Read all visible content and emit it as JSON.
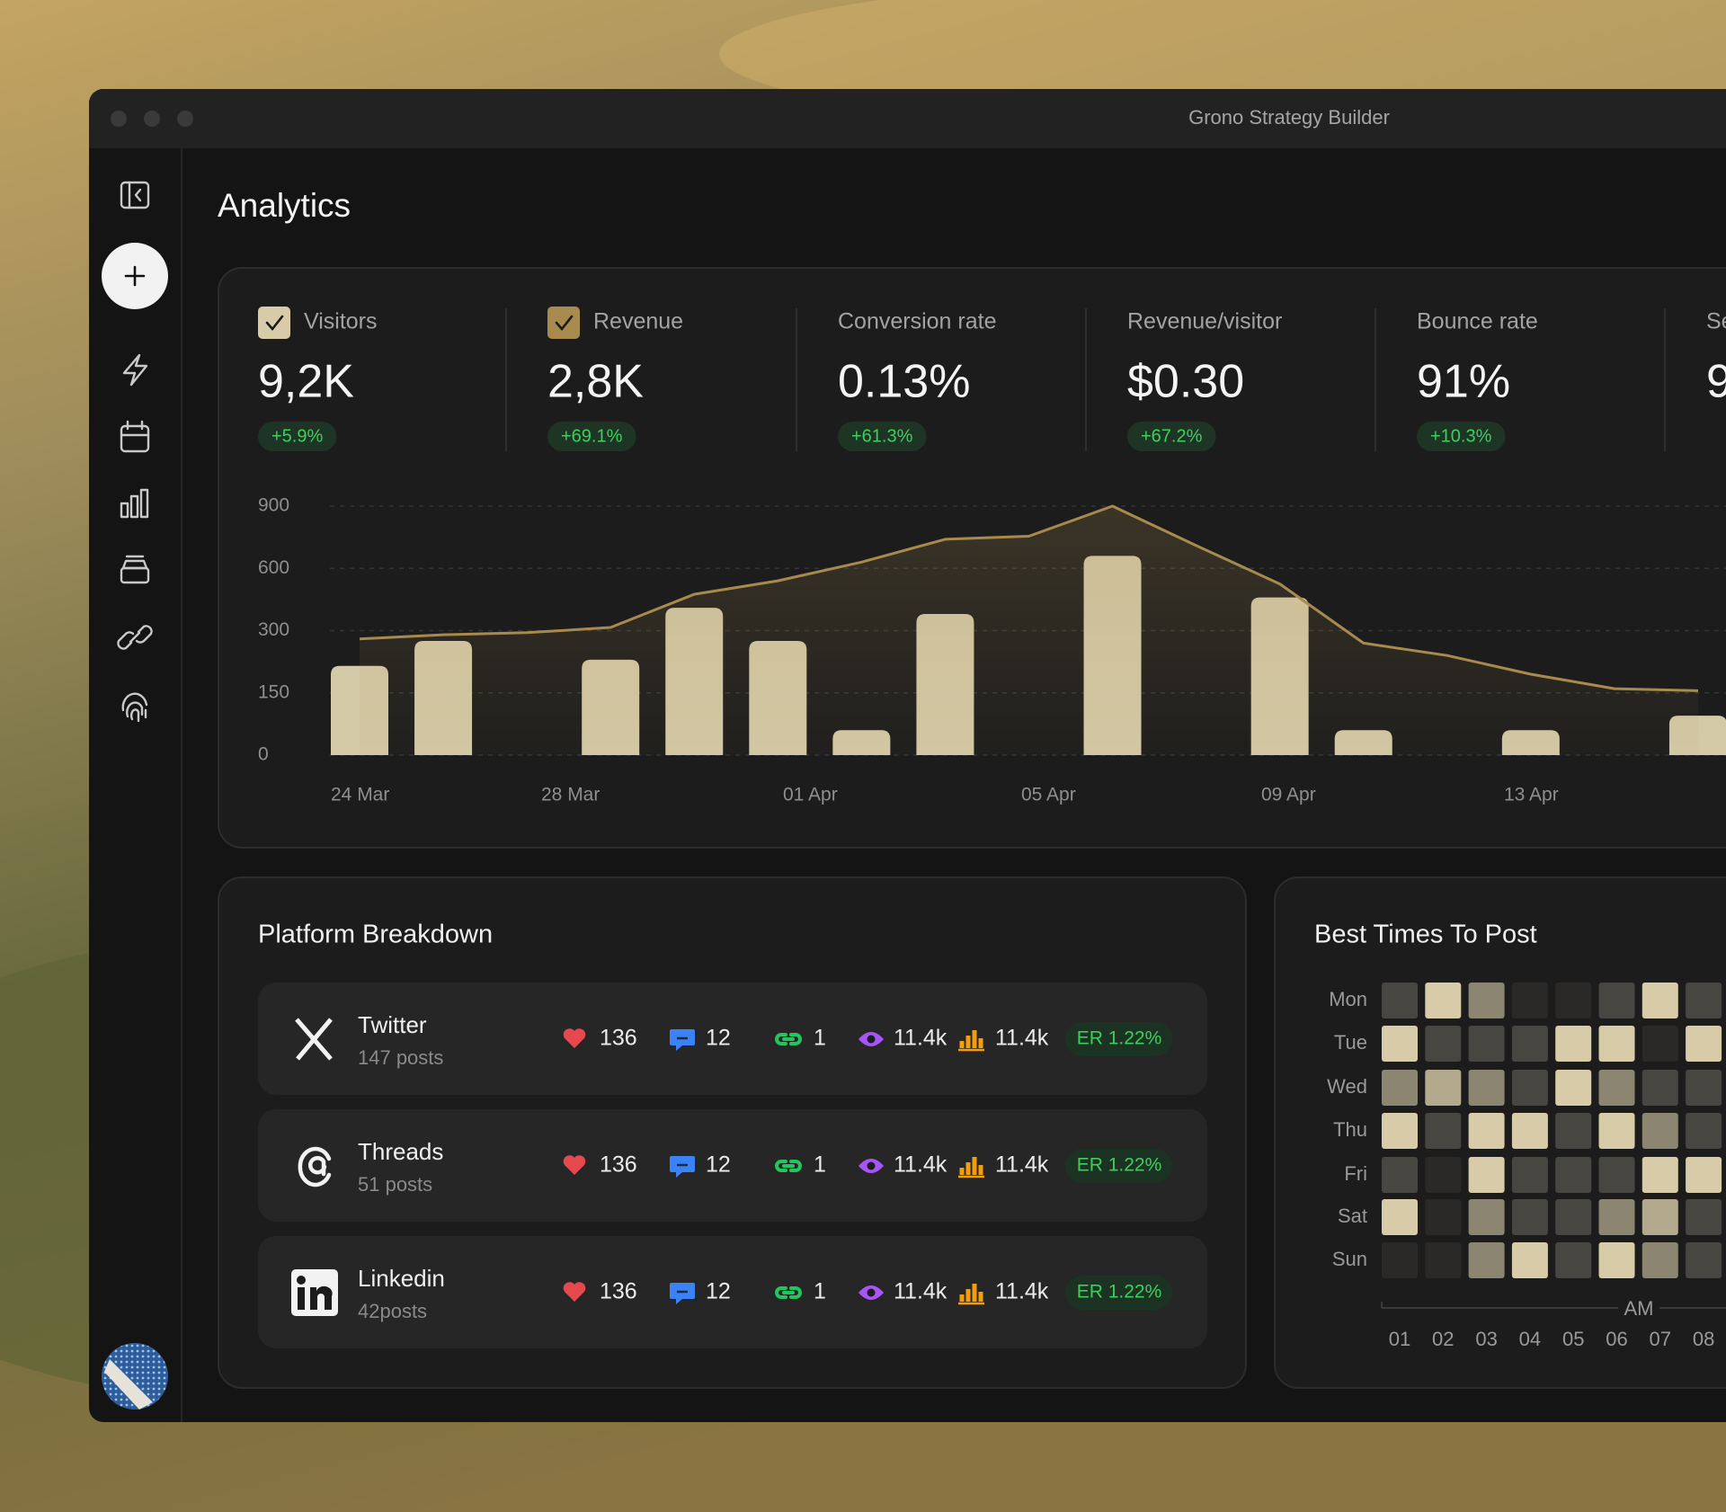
{
  "window": {
    "title": "Grono Strategy Builder"
  },
  "page": {
    "title": "Analytics"
  },
  "metrics": [
    {
      "label": "Visitors",
      "value": "9,2K",
      "change": "+5.9%",
      "checked": true,
      "check_color": "#d8cba7"
    },
    {
      "label": "Revenue",
      "value": "2,8K",
      "change": "+69.1%",
      "checked": true,
      "check_color": "#a88a4e"
    },
    {
      "label": "Conversion rate",
      "value": "0.13%",
      "change": "+61.3%",
      "checked": false
    },
    {
      "label": "Revenue/visitor",
      "value": "$0.30",
      "change": "+67.2%",
      "checked": false
    },
    {
      "label": "Bounce rate",
      "value": "91%",
      "change": "+10.3%",
      "checked": false
    },
    {
      "label": "Se",
      "value": "9",
      "checked": false
    }
  ],
  "chart_data": {
    "type": "bar",
    "ylim": [
      0,
      900
    ],
    "yticks": [
      0,
      150,
      300,
      600,
      900
    ],
    "grid": true,
    "x_labels": [
      "24 Mar",
      "28 Mar",
      "01 Apr",
      "05 Apr",
      "09 Apr",
      "13 Apr"
    ],
    "series": [
      {
        "type": "bar",
        "color": "#d4c9a6",
        "values": [
          215,
          275,
          null,
          230,
          410,
          275,
          60,
          380,
          null,
          660,
          null,
          460,
          60,
          null,
          60,
          null,
          95
        ]
      },
      {
        "type": "line",
        "color": "#a88a4e",
        "values": [
          280,
          290,
          295,
          315,
          475,
          540,
          630,
          740,
          755,
          900,
          710,
          525,
          270,
          240,
          195,
          160,
          155
        ]
      }
    ]
  },
  "platform_breakdown": {
    "title": "Platform Breakdown",
    "rows": [
      {
        "name": "Twitter",
        "posts": "147 posts",
        "likes": "136",
        "comments": "12",
        "shares": "1",
        "views": "11.4k",
        "impressions": "11.4k",
        "er": "ER 1.22%"
      },
      {
        "name": "Threads",
        "posts": "51 posts",
        "likes": "136",
        "comments": "12",
        "shares": "1",
        "views": "11.4k",
        "impressions": "11.4k",
        "er": "ER 1.22%"
      },
      {
        "name": "Linkedin",
        "posts": "42posts",
        "likes": "136",
        "comments": "12",
        "shares": "1",
        "views": "11.4k",
        "impressions": "11.4k",
        "er": "ER 1.22%"
      }
    ]
  },
  "best_times": {
    "title": "Best Times To Post",
    "days": [
      "Mon",
      "Tue",
      "Wed",
      "Thu",
      "Fri",
      "Sat",
      "Sun"
    ],
    "hours": [
      "01",
      "02",
      "03",
      "04",
      "05",
      "06",
      "07",
      "08"
    ],
    "period": "AM",
    "colors": [
      "#2a2927",
      "#484641",
      "#8b8571",
      "#b3aa8e",
      "#d8cba7"
    ],
    "levels": [
      [
        1,
        4,
        2,
        0,
        0,
        1,
        4,
        1
      ],
      [
        4,
        1,
        1,
        1,
        4,
        4,
        0,
        4
      ],
      [
        2,
        3,
        2,
        1,
        4,
        2,
        1,
        1
      ],
      [
        4,
        1,
        4,
        4,
        1,
        4,
        2,
        1
      ],
      [
        1,
        0,
        4,
        1,
        1,
        1,
        4,
        4
      ],
      [
        4,
        0,
        2,
        1,
        1,
        2,
        3,
        1
      ],
      [
        0,
        0,
        2,
        4,
        1,
        4,
        2,
        1
      ]
    ]
  }
}
